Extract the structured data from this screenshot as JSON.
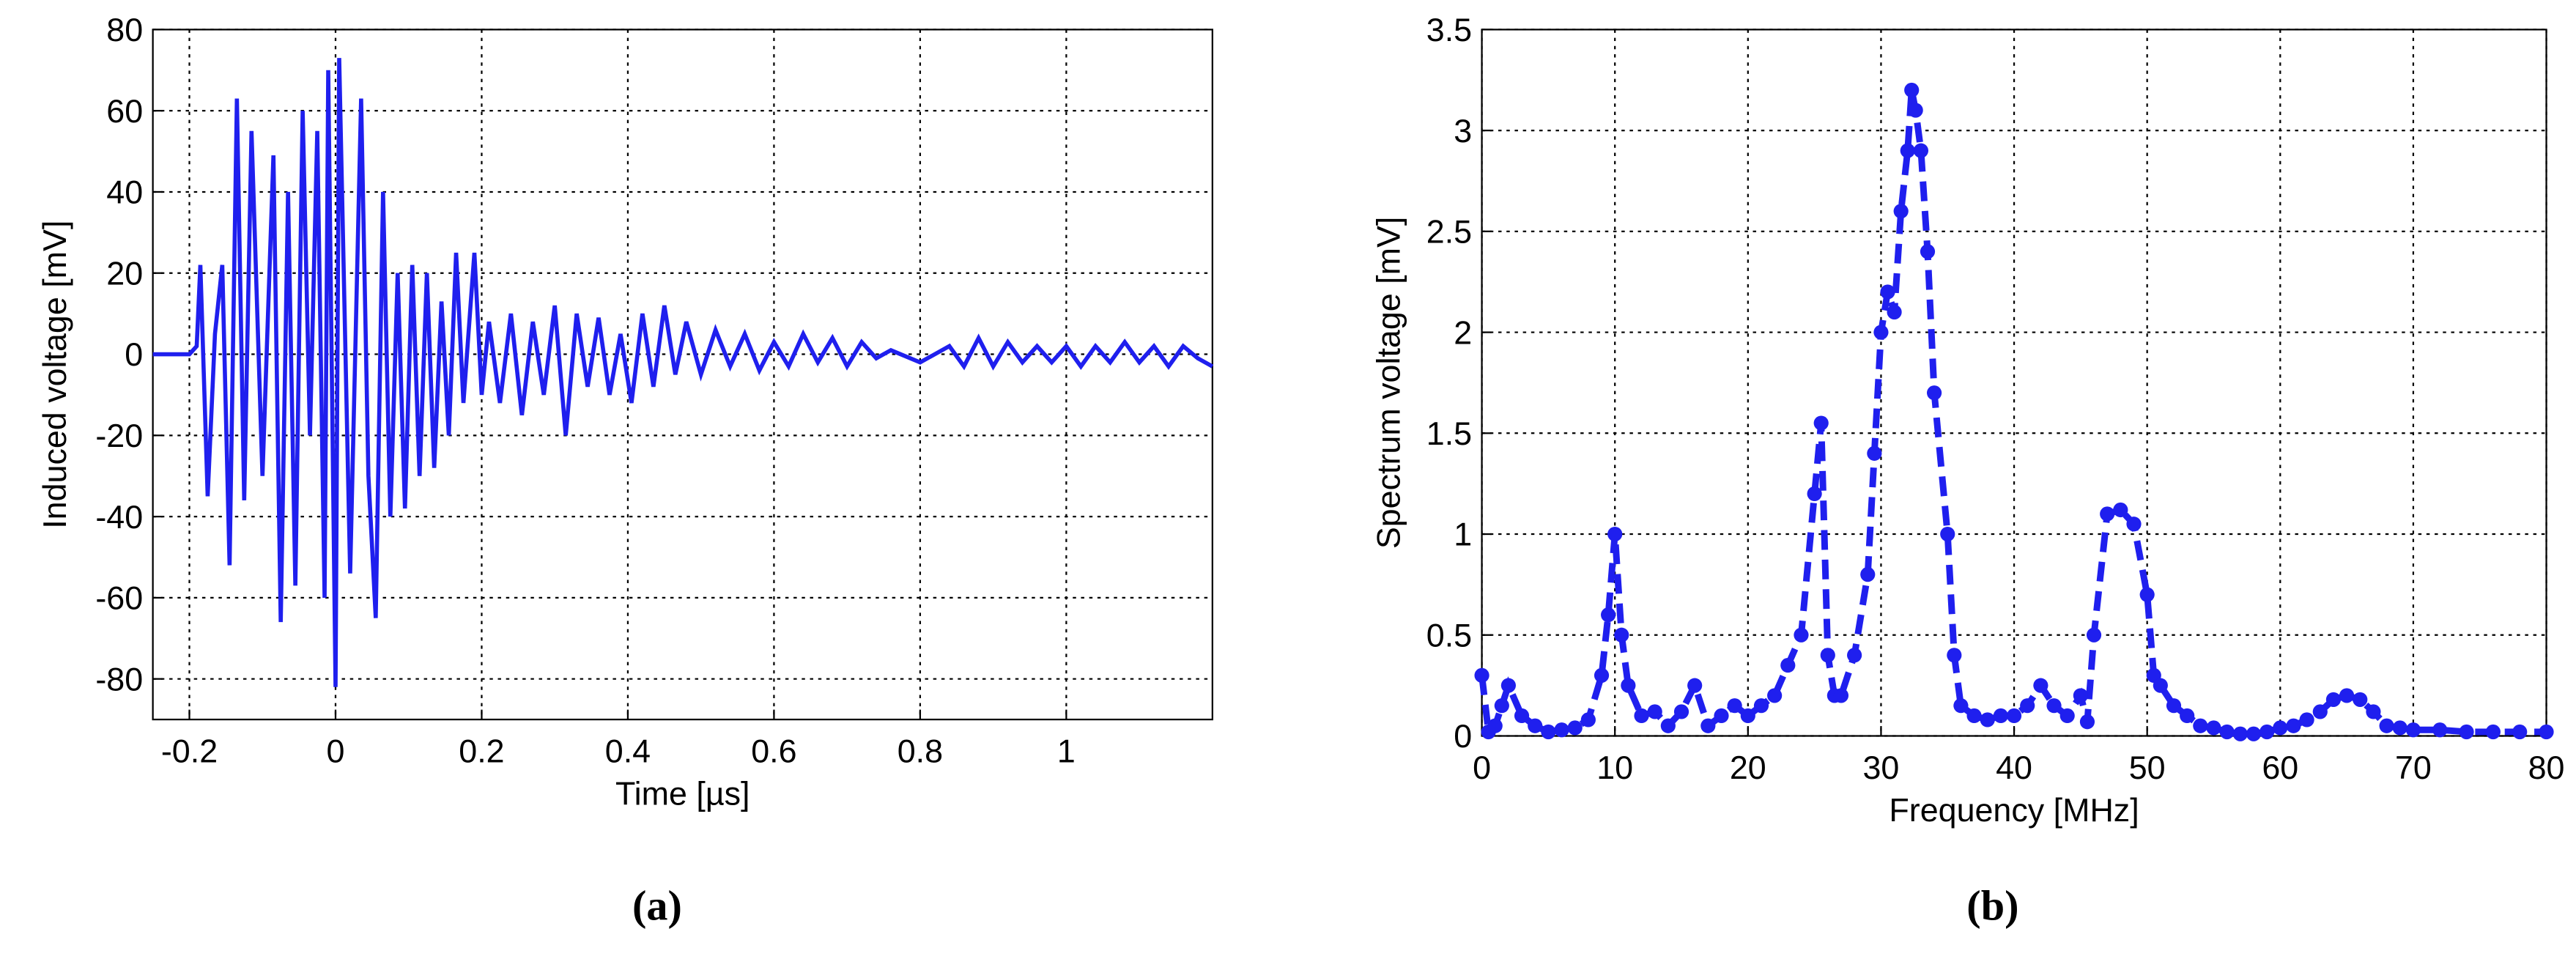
{
  "chart_data": [
    {
      "type": "line",
      "xlabel": "Time [µs]",
      "ylabel": "Induced voltage [mV]",
      "caption": "(a)",
      "grid": true,
      "xlim": [
        -0.25,
        1.2
      ],
      "ylim": [
        -90,
        80
      ],
      "xticks": [
        -0.2,
        0,
        0.2,
        0.4,
        0.6,
        0.8,
        1
      ],
      "yticks": [
        -80,
        -60,
        -40,
        -20,
        0,
        20,
        40,
        60,
        80
      ],
      "x": [
        -0.25,
        -0.2,
        -0.19,
        -0.185,
        -0.175,
        -0.165,
        -0.155,
        -0.145,
        -0.135,
        -0.125,
        -0.115,
        -0.1,
        -0.085,
        -0.075,
        -0.065,
        -0.055,
        -0.045,
        -0.035,
        -0.025,
        -0.015,
        -0.01,
        0,
        0.005,
        0.02,
        0.035,
        0.045,
        0.055,
        0.065,
        0.075,
        0.085,
        0.095,
        0.105,
        0.115,
        0.125,
        0.135,
        0.145,
        0.155,
        0.165,
        0.175,
        0.19,
        0.2,
        0.21,
        0.225,
        0.24,
        0.255,
        0.27,
        0.285,
        0.3,
        0.315,
        0.33,
        0.345,
        0.36,
        0.375,
        0.39,
        0.405,
        0.42,
        0.435,
        0.45,
        0.465,
        0.48,
        0.5,
        0.52,
        0.54,
        0.56,
        0.58,
        0.6,
        0.62,
        0.64,
        0.66,
        0.68,
        0.7,
        0.72,
        0.74,
        0.76,
        0.8,
        0.84,
        0.86,
        0.88,
        0.9,
        0.92,
        0.94,
        0.96,
        0.98,
        1.0,
        1.02,
        1.04,
        1.06,
        1.08,
        1.1,
        1.12,
        1.14,
        1.16,
        1.18,
        1.2
      ],
      "series": [
        {
          "name": "Induced voltage",
          "color": "#1f1fee",
          "values": [
            0,
            0,
            2,
            22,
            -35,
            5,
            22,
            -52,
            63,
            -36,
            55,
            -30,
            49,
            -66,
            40,
            -57,
            60,
            -20,
            55,
            -60,
            70,
            -82,
            73,
            -54,
            63,
            -30,
            -65,
            40,
            -40,
            20,
            -38,
            22,
            -30,
            20,
            -28,
            13,
            -20,
            25,
            -12,
            25,
            -10,
            8,
            -12,
            10,
            -15,
            8,
            -10,
            12,
            -20,
            10,
            -8,
            9,
            -10,
            5,
            -12,
            10,
            -8,
            12,
            -5,
            8,
            -5,
            6,
            -3,
            5,
            -4,
            3,
            -3,
            5,
            -2,
            4,
            -3,
            3,
            -1,
            1,
            -2,
            2,
            -3,
            4,
            -3,
            3,
            -2,
            2,
            -2,
            2,
            -3,
            2,
            -2,
            3,
            -2,
            2,
            -3,
            2,
            -1,
            -3
          ]
        }
      ]
    },
    {
      "type": "line",
      "marker": true,
      "xlabel": "Frequency [MHz]",
      "ylabel": "Spectrum voltage [mV]",
      "caption": "(b)",
      "grid": true,
      "xlim": [
        0,
        80
      ],
      "ylim": [
        0,
        3.5
      ],
      "xticks": [
        0,
        10,
        20,
        30,
        40,
        50,
        60,
        70,
        80
      ],
      "yticks": [
        0,
        0.5,
        1,
        1.5,
        2,
        2.5,
        3,
        3.5
      ],
      "x": [
        0,
        0.5,
        1,
        1.5,
        2,
        3,
        4,
        5,
        6,
        7,
        8,
        9,
        9.5,
        10,
        10.5,
        11,
        12,
        13,
        14,
        15,
        16,
        17,
        18,
        19,
        20,
        21,
        22,
        23,
        24,
        25,
        25.5,
        26,
        26.5,
        27,
        28,
        29,
        29.5,
        30,
        30.5,
        31,
        31.5,
        32,
        32.3,
        32.6,
        33,
        33.5,
        34,
        35,
        35.5,
        36,
        37,
        38,
        39,
        40,
        41,
        42,
        43,
        44,
        45,
        45.5,
        46,
        47,
        48,
        49,
        50,
        50.5,
        51,
        52,
        53,
        54,
        55,
        56,
        57,
        58,
        59,
        60,
        61,
        62,
        63,
        64,
        65,
        66,
        67,
        68,
        69,
        70,
        72,
        74,
        76,
        78,
        80
      ],
      "series": [
        {
          "name": "Spectrum voltage",
          "color": "#1f1fee",
          "values": [
            0.3,
            0.02,
            0.05,
            0.15,
            0.25,
            0.1,
            0.05,
            0.02,
            0.03,
            0.04,
            0.08,
            0.3,
            0.6,
            1.0,
            0.5,
            0.25,
            0.1,
            0.12,
            0.05,
            0.12,
            0.25,
            0.05,
            0.1,
            0.15,
            0.1,
            0.15,
            0.2,
            0.35,
            0.5,
            1.2,
            1.55,
            0.4,
            0.2,
            0.2,
            0.4,
            0.8,
            1.4,
            2.0,
            2.2,
            2.1,
            2.6,
            2.9,
            3.2,
            3.1,
            2.9,
            2.4,
            1.7,
            1.0,
            0.4,
            0.15,
            0.1,
            0.08,
            0.1,
            0.1,
            0.15,
            0.25,
            0.15,
            0.1,
            0.2,
            0.07,
            0.5,
            1.1,
            1.12,
            1.05,
            0.7,
            0.3,
            0.25,
            0.15,
            0.1,
            0.05,
            0.04,
            0.02,
            0.01,
            0.01,
            0.02,
            0.04,
            0.05,
            0.08,
            0.12,
            0.18,
            0.2,
            0.18,
            0.12,
            0.05,
            0.04,
            0.03,
            0.03,
            0.02,
            0.02,
            0.02,
            0.02
          ]
        }
      ]
    }
  ]
}
